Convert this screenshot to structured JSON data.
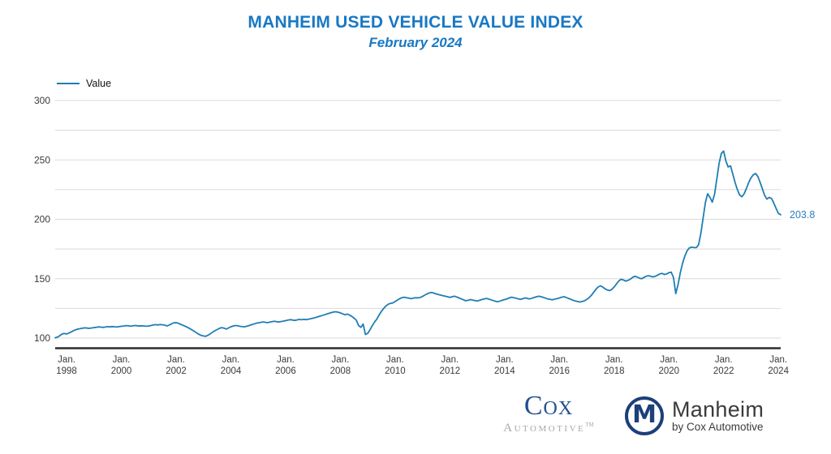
{
  "chart_data": {
    "type": "line",
    "title": "MANHEIM USED VEHICLE VALUE INDEX",
    "subtitle": "February 2024",
    "legend": [
      {
        "label": "Value"
      }
    ],
    "legend_position": "top-left",
    "grid": "horizontal-only",
    "end_label": "203.8",
    "colors": {
      "title": "#1878c4",
      "line": "#1f7eb4",
      "end_label": "#2a80c0",
      "gridline": "#d9d9d9",
      "axis_line": "#2e2e2e",
      "tick_text": "#3a3a3a"
    },
    "y_axis": {
      "ticks": [
        100,
        150,
        200,
        250,
        300
      ],
      "minor_gridline_step": 25,
      "gridline_min": 100,
      "gridline_max": 300
    },
    "x_axis": {
      "month_prefix": "Jan.",
      "tick_years": [
        "1998",
        "2000",
        "2002",
        "2004",
        "2006",
        "2008",
        "2010",
        "2012",
        "2014",
        "2016",
        "2018",
        "2020",
        "2022",
        "2024"
      ],
      "first_tick_index": 5,
      "tick_step_months": 24
    },
    "series": [
      {
        "name": "Value",
        "frequency": "monthly",
        "start": "1997-08",
        "end": "2024-02",
        "values": [
          100.3,
          100.8,
          102.0,
          103.4,
          103.8,
          103.5,
          104.2,
          105.2,
          106.2,
          107.0,
          107.6,
          107.9,
          108.3,
          108.6,
          108.4,
          108.2,
          108.5,
          108.8,
          109.1,
          109.4,
          109.2,
          109.0,
          109.3,
          109.6,
          109.4,
          109.7,
          109.5,
          109.3,
          109.6,
          109.9,
          110.2,
          110.5,
          110.3,
          110.0,
          110.3,
          110.6,
          110.4,
          110.1,
          110.4,
          110.2,
          110.0,
          110.2,
          110.6,
          111.0,
          111.3,
          111.0,
          111.4,
          111.2,
          111.0,
          110.2,
          111.0,
          112.0,
          112.8,
          113.0,
          112.4,
          111.6,
          110.8,
          110.0,
          109.0,
          108.0,
          106.8,
          105.6,
          104.4,
          103.2,
          102.2,
          101.8,
          101.5,
          102.4,
          103.6,
          105.0,
          106.2,
          107.2,
          108.2,
          108.8,
          108.4,
          107.6,
          108.5,
          109.5,
          110.2,
          110.6,
          110.3,
          109.9,
          109.6,
          109.5,
          110.0,
          110.6,
          111.2,
          111.8,
          112.4,
          112.8,
          113.2,
          113.6,
          113.3,
          113.0,
          113.4,
          113.8,
          114.2,
          113.8,
          113.5,
          113.9,
          114.3,
          114.7,
          115.1,
          115.5,
          115.2,
          114.9,
          115.3,
          115.7,
          115.4,
          115.8,
          115.5,
          115.9,
          116.3,
          116.7,
          117.2,
          117.8,
          118.4,
          119.0,
          119.6,
          120.2,
          120.8,
          121.4,
          121.9,
          122.2,
          121.8,
          121.2,
          120.4,
          119.6,
          120.2,
          119.4,
          118.2,
          116.8,
          115.0,
          110.5,
          109.0,
          111.8,
          103.0,
          104.0,
          107.0,
          110.5,
          113.5,
          116.0,
          119.5,
          122.5,
          125.0,
          127.0,
          128.5,
          129.2,
          129.6,
          130.8,
          132.0,
          133.2,
          134.0,
          134.4,
          134.0,
          133.6,
          133.2,
          133.6,
          134.0,
          133.8,
          134.2,
          135.0,
          136.2,
          137.2,
          138.0,
          138.4,
          137.8,
          137.2,
          136.6,
          136.2,
          135.6,
          135.2,
          134.8,
          134.2,
          134.8,
          135.2,
          134.6,
          133.8,
          133.0,
          132.2,
          131.4,
          131.8,
          132.4,
          132.0,
          131.6,
          131.2,
          131.8,
          132.4,
          133.0,
          133.4,
          132.8,
          132.2,
          131.6,
          131.0,
          130.6,
          131.2,
          131.8,
          132.4,
          133.0,
          133.8,
          134.4,
          134.0,
          133.6,
          133.0,
          132.6,
          133.2,
          133.8,
          133.4,
          133.0,
          133.6,
          134.2,
          134.8,
          135.2,
          134.8,
          134.2,
          133.6,
          133.0,
          132.6,
          132.2,
          132.8,
          133.2,
          133.8,
          134.4,
          134.8,
          134.2,
          133.4,
          132.6,
          131.8,
          131.2,
          130.8,
          130.4,
          130.8,
          131.4,
          132.5,
          134.0,
          136.0,
          138.5,
          141.0,
          143.0,
          144.0,
          143.0,
          141.5,
          140.5,
          140.0,
          141.0,
          143.0,
          145.5,
          148.0,
          149.5,
          149.0,
          148.0,
          148.5,
          149.5,
          151.0,
          152.0,
          151.5,
          150.5,
          150.0,
          151.0,
          152.0,
          152.5,
          152.0,
          151.5,
          152.0,
          153.0,
          154.0,
          154.5,
          153.5,
          154.0,
          155.0,
          155.5,
          151.0,
          137.5,
          145.0,
          155.0,
          163.0,
          169.0,
          173.5,
          176.0,
          176.5,
          176.2,
          176.2,
          178.5,
          188.0,
          201.0,
          214.0,
          221.5,
          218.5,
          214.5,
          221.0,
          234.0,
          247.0,
          255.5,
          257.5,
          249.0,
          244.0,
          245.0,
          238.0,
          231.0,
          225.0,
          220.5,
          219.0,
          221.5,
          226.0,
          231.0,
          235.0,
          237.5,
          238.5,
          236.0,
          231.0,
          225.5,
          220.0,
          217.0,
          218.5,
          217.5,
          213.5,
          209.0,
          205.0,
          203.8
        ]
      }
    ]
  },
  "footer": {
    "cox_logo": {
      "word": "Cox",
      "sub": "Automotive",
      "trademark": "TM",
      "word_color": "#24508e",
      "sub_color": "#a8a8a8"
    },
    "manheim_logo": {
      "monogram": "M",
      "name": "Manheim",
      "tagline": "by Cox Automotive",
      "navy": "#1d3f7a"
    }
  }
}
